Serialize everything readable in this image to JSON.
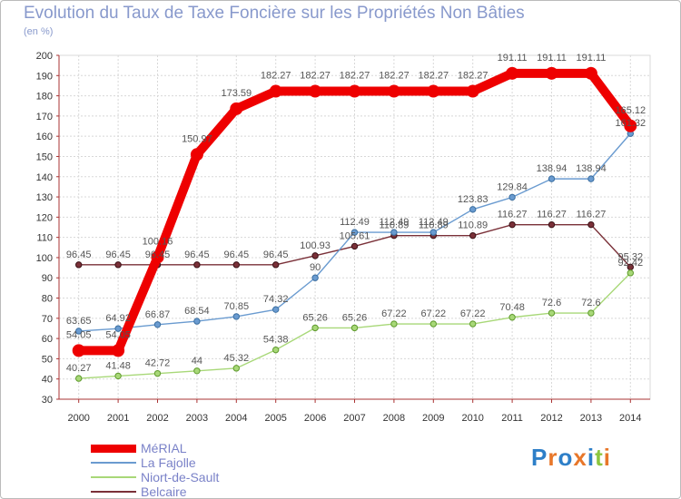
{
  "chart_data": {
    "type": "line",
    "title": "Evolution du Taux de Taxe Foncière sur les Propriétés Non Bâties",
    "unit_label": "(en %)",
    "categories": [
      "2000",
      "2001",
      "2002",
      "2003",
      "2004",
      "2005",
      "2006",
      "2007",
      "2008",
      "2009",
      "2010",
      "2011",
      "2012",
      "2013",
      "2014"
    ],
    "ylim": [
      30,
      200
    ],
    "yticks": [
      30,
      40,
      50,
      60,
      70,
      80,
      90,
      100,
      110,
      120,
      130,
      140,
      150,
      160,
      170,
      180,
      190,
      200
    ],
    "grid": true,
    "series": [
      {
        "name": "MéRIAL",
        "color": "#ee0000",
        "values": [
          54.05,
          54.05,
          100.16,
          150.97,
          173.59,
          182.27,
          182.27,
          182.27,
          182.27,
          182.27,
          182.27,
          191.11,
          191.11,
          191.11,
          165.12
        ],
        "labels": [
          "54.05",
          "54.05",
          "100.16",
          "150.97",
          "173.59",
          "182.27",
          "182.27",
          "182.27",
          "182.27",
          "182.27",
          "182.27",
          "191.11",
          "191.11",
          "191.11",
          "165.12"
        ]
      },
      {
        "name": "La Fajolle",
        "color": "#6a9bd0",
        "values": [
          63.65,
          64.92,
          66.87,
          68.54,
          70.85,
          74.32,
          90,
          112.49,
          112.49,
          112.49,
          123.83,
          129.84,
          138.94,
          138.94,
          161.32
        ],
        "labels": [
          "63.65",
          "64.92",
          "66.87",
          "68.54",
          "70.85",
          "74.32",
          "90",
          "112.49",
          "112.49",
          "112.49",
          "123.83",
          "129.84",
          "138.94",
          "138.94",
          "161.32"
        ]
      },
      {
        "name": "Niort-de-Sault",
        "color": "#a8d878",
        "values": [
          40.27,
          41.48,
          42.72,
          44,
          45.32,
          54.38,
          65.26,
          65.26,
          67.22,
          67.22,
          67.22,
          70.48,
          72.6,
          72.6,
          92.42
        ],
        "labels": [
          "40.27",
          "41.48",
          "42.72",
          "44",
          "45.32",
          "54.38",
          "65.26",
          "65.26",
          "67.22",
          "67.22",
          "67.22",
          "70.48",
          "72.6",
          "72.6",
          "92.42"
        ]
      },
      {
        "name": "Belcaire",
        "color": "#7a3038",
        "values": [
          96.45,
          96.45,
          96.45,
          96.45,
          96.45,
          96.45,
          100.93,
          105.61,
          110.89,
          110.89,
          110.89,
          116.27,
          116.27,
          116.27,
          95.32
        ],
        "labels": [
          "96.45",
          "96.45",
          "96.45",
          "96.45",
          "96.45",
          "96.45",
          "100.93",
          "105.61",
          "110.89",
          "110.89",
          "110.89",
          "116.27",
          "116.27",
          "116.27",
          "95.32"
        ]
      }
    ]
  },
  "logo": {
    "text": "Proxiti"
  }
}
